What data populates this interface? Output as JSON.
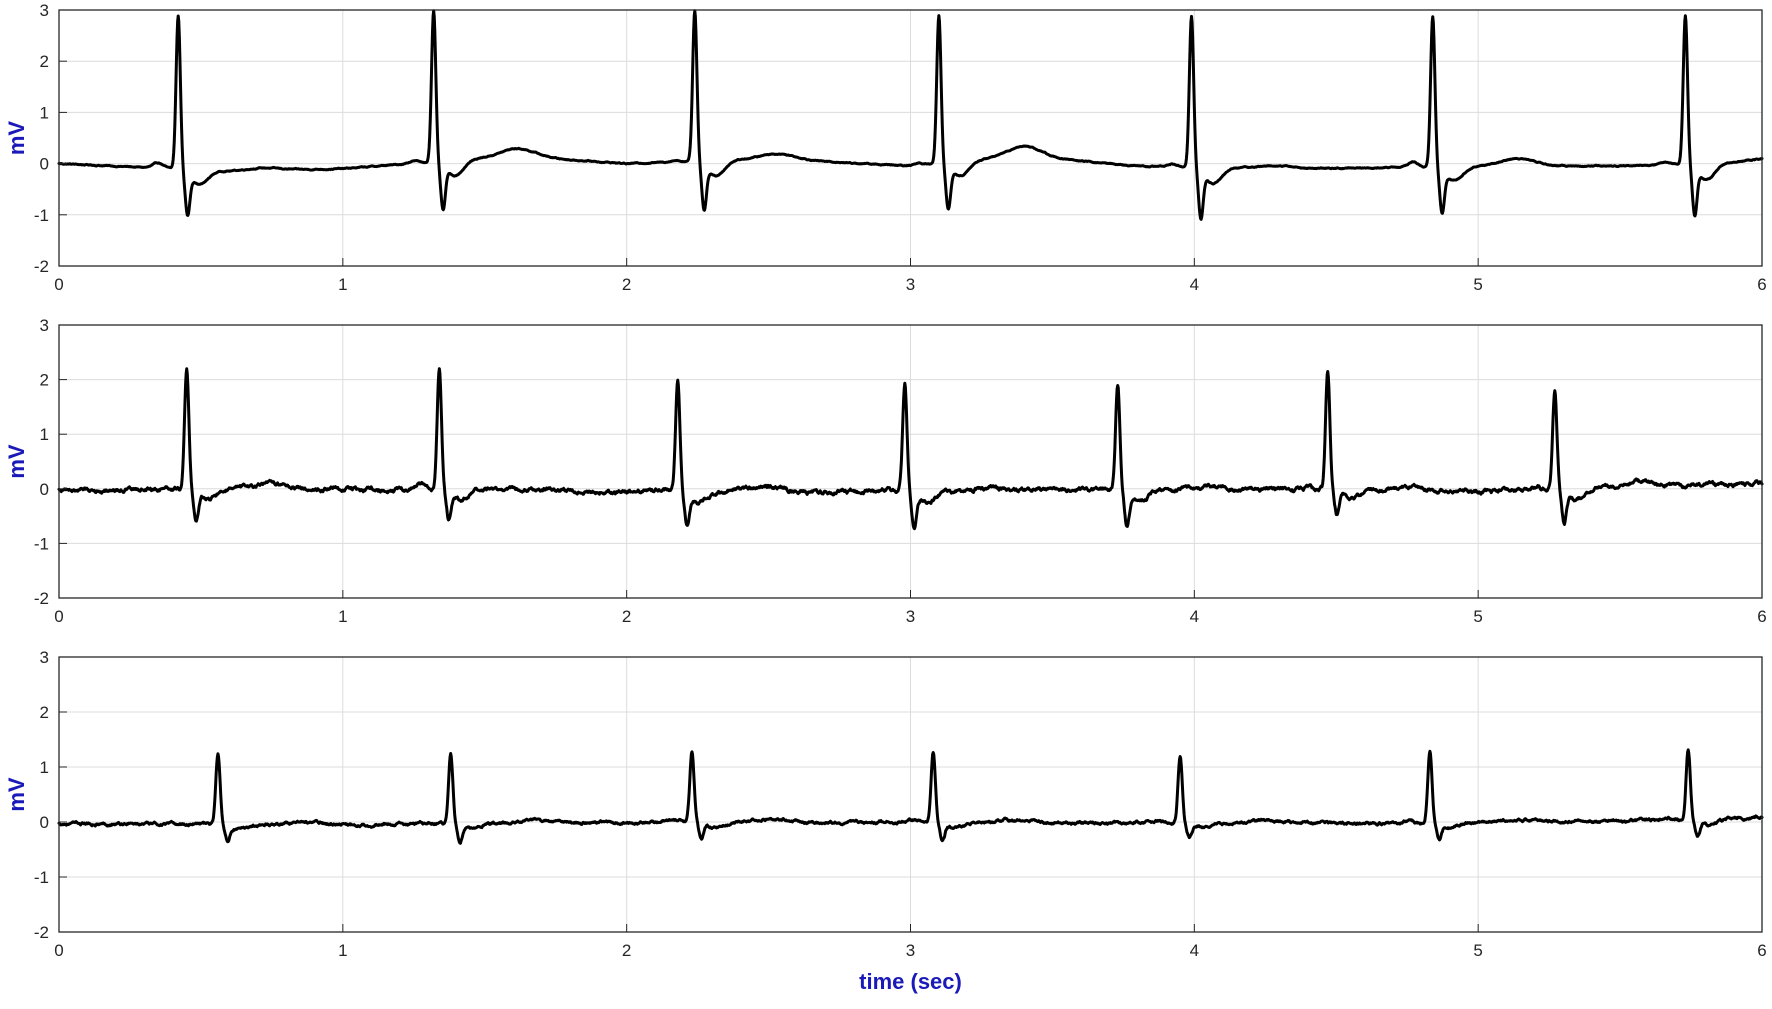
{
  "chart_data": [
    {
      "type": "line",
      "title": "",
      "xlabel": "",
      "ylabel": "mV",
      "xlim": [
        0,
        6
      ],
      "ylim": [
        -2,
        3
      ],
      "xticks": [
        0,
        1,
        2,
        3,
        4,
        5,
        6
      ],
      "yticks": [
        -2,
        -1,
        0,
        1,
        2,
        3
      ],
      "grid": true,
      "series": [
        {
          "beats": [
            {
              "t": 0.42,
              "r": 3.0,
              "s": -0.8,
              "p": 0.1,
              "tw": 0.05
            },
            {
              "t": 1.32,
              "r": 2.95,
              "s": -0.85,
              "p": 0.05,
              "tw": 0.15
            },
            {
              "t": 2.24,
              "r": 2.95,
              "s": -0.85,
              "p": 0.03,
              "tw": 0.1
            },
            {
              "t": 3.1,
              "r": 2.9,
              "s": -0.8,
              "p": 0.05,
              "tw": 0.2
            },
            {
              "t": 3.99,
              "r": 2.95,
              "s": -0.9,
              "p": 0.05,
              "tw": 0.05
            },
            {
              "t": 4.84,
              "r": 2.95,
              "s": -0.8,
              "p": 0.1,
              "tw": 0.15
            },
            {
              "t": 5.73,
              "r": 2.9,
              "s": -0.9,
              "p": 0.05,
              "tw": 0.05
            }
          ],
          "baseline": [
            [
              0,
              0
            ],
            [
              0.6,
              -0.15
            ],
            [
              1.0,
              -0.1
            ],
            [
              1.6,
              0.15
            ],
            [
              2.0,
              0.0
            ],
            [
              2.5,
              0.1
            ],
            [
              3.0,
              -0.05
            ],
            [
              3.4,
              0.15
            ],
            [
              3.8,
              -0.05
            ],
            [
              4.4,
              -0.1
            ],
            [
              5.0,
              -0.05
            ],
            [
              5.5,
              -0.05
            ],
            [
              6.0,
              0.05
            ]
          ]
        }
      ]
    },
    {
      "type": "line",
      "title": "",
      "xlabel": "",
      "ylabel": "mV",
      "xlim": [
        0,
        6
      ],
      "ylim": [
        -2,
        3
      ],
      "xticks": [
        0,
        1,
        2,
        3,
        4,
        5,
        6
      ],
      "yticks": [
        -2,
        -1,
        0,
        1,
        2,
        3
      ],
      "grid": true,
      "series": [
        {
          "beats": [
            {
              "t": 0.45,
              "r": 2.2,
              "s": -0.5,
              "p": 0.05,
              "tw": 0.1
            },
            {
              "t": 1.34,
              "r": 2.2,
              "s": -0.5,
              "p": 0.1,
              "tw": 0.05
            },
            {
              "t": 2.18,
              "r": 2.1,
              "s": -0.55,
              "p": 0.05,
              "tw": 0.1
            },
            {
              "t": 2.98,
              "r": 2.0,
              "s": -0.55,
              "p": 0.05,
              "tw": 0.05
            },
            {
              "t": 3.73,
              "r": 1.95,
              "s": -0.6,
              "p": 0.05,
              "tw": 0.05
            },
            {
              "t": 4.47,
              "r": 2.15,
              "s": -0.4,
              "p": 0.05,
              "tw": 0.05
            },
            {
              "t": 5.27,
              "r": 1.8,
              "s": -0.55,
              "p": 0.05,
              "tw": 0.1
            }
          ],
          "baseline": [
            [
              0,
              -0.02
            ],
            [
              1.0,
              0.0
            ],
            [
              2.0,
              -0.05
            ],
            [
              3.0,
              -0.05
            ],
            [
              4.0,
              0.0
            ],
            [
              5.0,
              -0.05
            ],
            [
              6.0,
              0.1
            ]
          ]
        }
      ]
    },
    {
      "type": "line",
      "title": "",
      "xlabel": "time (sec)",
      "ylabel": "mV",
      "xlim": [
        0,
        6
      ],
      "ylim": [
        -2,
        3
      ],
      "xticks": [
        0,
        1,
        2,
        3,
        4,
        5,
        6
      ],
      "yticks": [
        -2,
        -1,
        0,
        1,
        2,
        3
      ],
      "grid": true,
      "series": [
        {
          "beats": [
            {
              "t": 0.56,
              "r": 1.28,
              "s": -0.28,
              "p": 0.03,
              "tw": 0.05
            },
            {
              "t": 1.38,
              "r": 1.3,
              "s": -0.3,
              "p": 0.03,
              "tw": 0.05
            },
            {
              "t": 2.23,
              "r": 1.28,
              "s": -0.3,
              "p": 0.03,
              "tw": 0.05
            },
            {
              "t": 3.08,
              "r": 1.28,
              "s": -0.3,
              "p": 0.03,
              "tw": 0.05
            },
            {
              "t": 3.95,
              "r": 1.25,
              "s": -0.22,
              "p": 0.03,
              "tw": 0.05
            },
            {
              "t": 4.83,
              "r": 1.32,
              "s": -0.25,
              "p": 0.05,
              "tw": 0.05
            },
            {
              "t": 5.74,
              "r": 1.3,
              "s": -0.28,
              "p": 0.05,
              "tw": 0.05
            }
          ],
          "baseline": [
            [
              0,
              -0.03
            ],
            [
              1.0,
              -0.05
            ],
            [
              2.0,
              0.0
            ],
            [
              3.0,
              0.0
            ],
            [
              4.0,
              -0.02
            ],
            [
              5.0,
              -0.02
            ],
            [
              6.0,
              0.06
            ]
          ]
        }
      ]
    }
  ]
}
